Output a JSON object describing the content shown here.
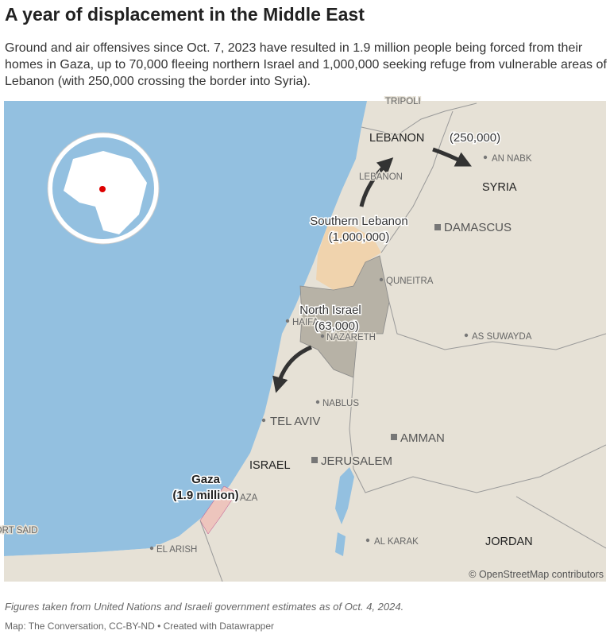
{
  "header": {
    "title": "A year of displacement in the Middle East",
    "subtitle": "Ground and air offensives since Oct. 7, 2023 have resulted in 1.9 million people being forced from their homes in Gaza, up to 70,000 fleeing northern Israel and 1,000,000 seeking refuge from vulnerable areas of Lebanon (with 250,000 crossing the border into Syria)."
  },
  "map": {
    "labels": [
      "TRIPOLI",
      "LEBANON",
      "AN NABK",
      "SYRIA",
      "LEBANON",
      "DAMASCUS",
      "QUNEITRA",
      "HAIFA",
      "NAZARETH",
      "AS SUWAYDA",
      "NABLUS",
      "TEL AVIV",
      "AMMAN",
      "ISRAEL",
      "JERUSALEM",
      "GAZA",
      "PORT SAID",
      "EL ARISH",
      "AL KARAK",
      "JORDAN"
    ],
    "annotations": [
      {
        "name": "Southern Lebanon",
        "value": "(1,000,000)"
      },
      {
        "name": "North Israel",
        "value": "(63,000)"
      },
      {
        "name": "Gaza",
        "value": "(1.9 million)"
      },
      {
        "name": "",
        "value": "(250,000)"
      }
    ],
    "attribution": "© OpenStreetMap contributors"
  },
  "footer": {
    "note": "Figures taken from United Nations and Israeli government estimates as of Oct. 4, 2024.",
    "credit": "Map: The Conversation, CC-BY-ND • Created with Datawrapper"
  }
}
